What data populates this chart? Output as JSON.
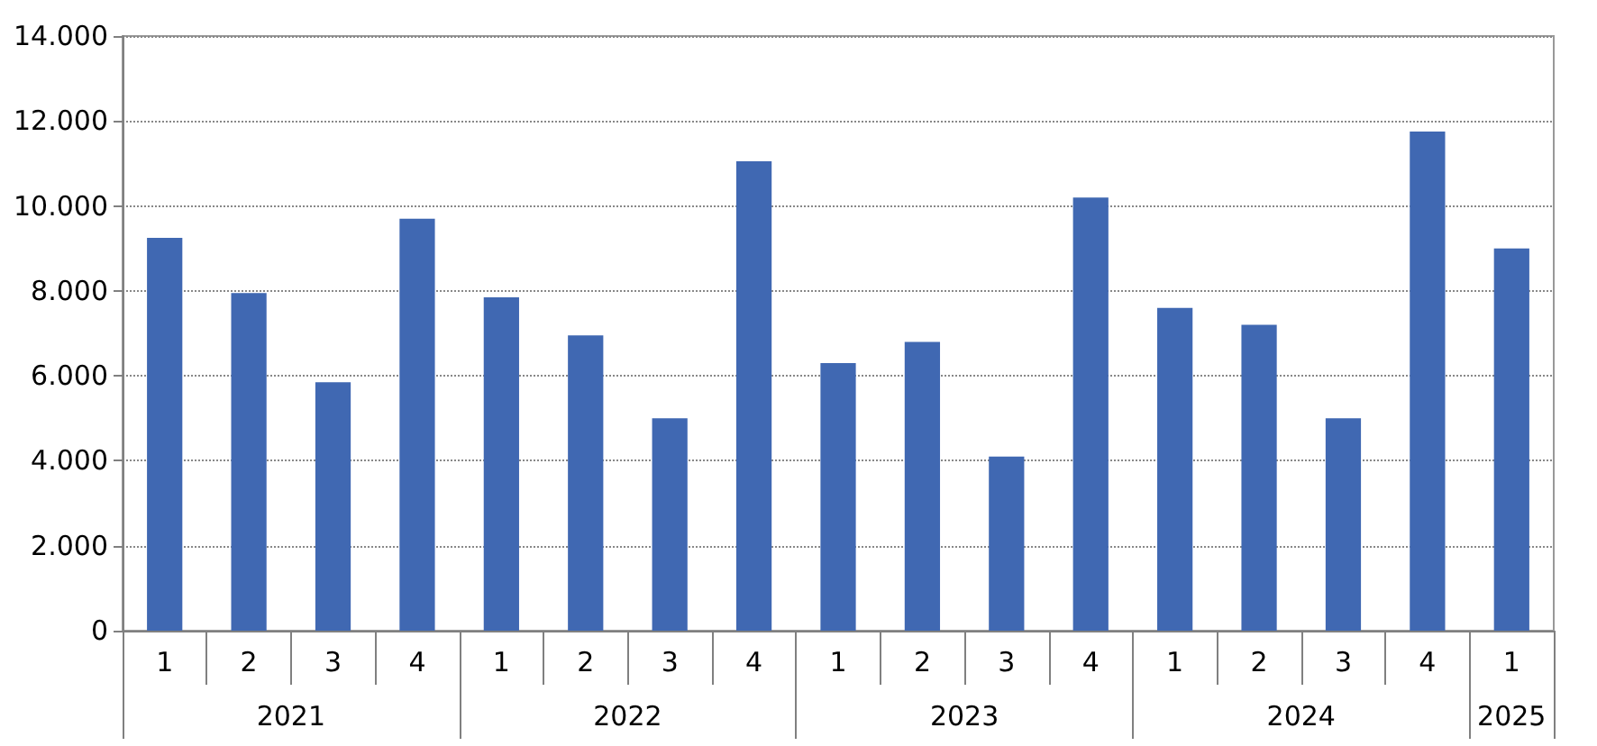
{
  "chart_data": {
    "type": "bar",
    "categories": [
      "1",
      "2",
      "3",
      "4",
      "1",
      "2",
      "3",
      "4",
      "1",
      "2",
      "3",
      "4",
      "1",
      "2",
      "3",
      "4",
      "1"
    ],
    "values": [
      9250,
      7950,
      5850,
      9700,
      7850,
      6950,
      5000,
      11050,
      6300,
      6800,
      4100,
      10200,
      7600,
      7200,
      5000,
      11750,
      9000
    ],
    "color": "#4068b2",
    "ylim": [
      0,
      14000
    ],
    "yticks": [
      0,
      {
        "value": 2000,
        "label": "2.000"
      },
      {
        "value": 4000,
        "label": "4.000"
      },
      {
        "value": 6000,
        "label": "6.000"
      },
      {
        "value": 8000,
        "label": "8.000"
      },
      {
        "value": 10000,
        "label": "10.000"
      },
      {
        "value": 12000,
        "label": "12.000"
      },
      {
        "value": 14000,
        "label": "14.000"
      }
    ],
    "annotations": [
      "2021",
      "2022",
      "2023",
      "2024",
      "2025"
    ],
    "grid": "y"
  }
}
